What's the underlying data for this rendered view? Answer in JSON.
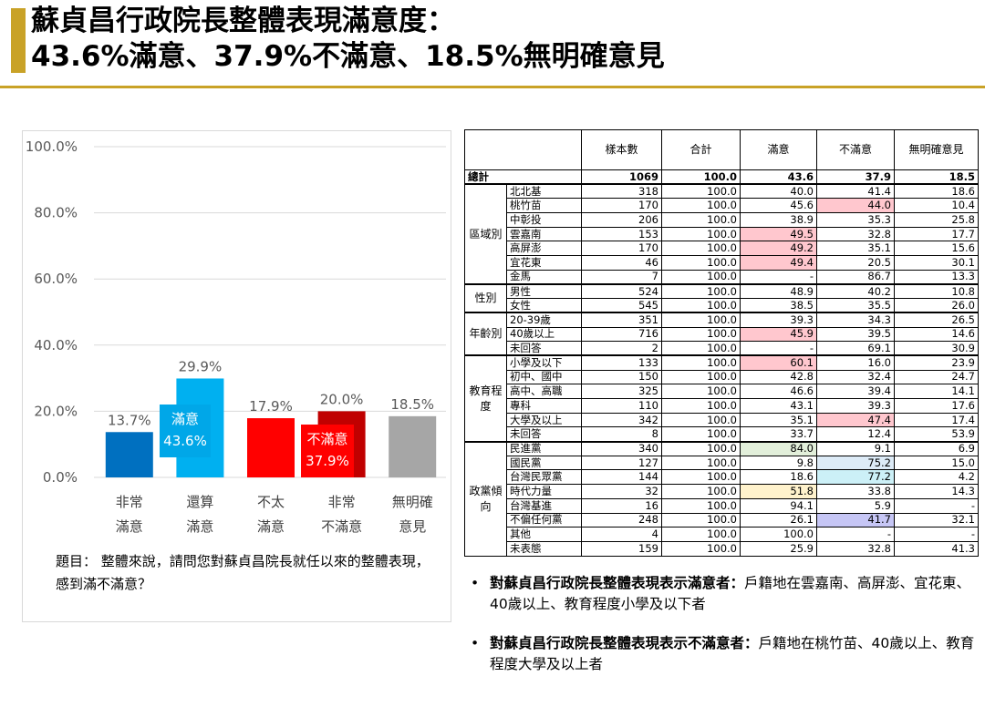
{
  "header": {
    "title_line1": "蘇貞昌行政院長整體表現滿意度：",
    "title_line2": "43.6%滿意、37.9%不滿意、18.5%無明確意見",
    "accent_color": "#c9a227"
  },
  "chart_data": {
    "type": "bar",
    "categories": [
      {
        "line1": "非常",
        "line2": "滿意"
      },
      {
        "line1": "還算",
        "line2": "滿意"
      },
      {
        "line1": "不太",
        "line2": "滿意"
      },
      {
        "line1": "非常",
        "line2": "不滿意"
      },
      {
        "line1": "無明確",
        "line2": "意見"
      }
    ],
    "values": [
      13.7,
      29.9,
      17.9,
      20.0,
      18.5
    ],
    "value_labels": [
      "13.7%",
      "29.9%",
      "17.9%",
      "20.0%",
      "18.5%"
    ],
    "colors": [
      "#0070c0",
      "#00b0f0",
      "#ff0000",
      "#c00000",
      "#a6a6a6"
    ],
    "yticks": [
      "0.0%",
      "20.0%",
      "40.0%",
      "60.0%",
      "80.0%",
      "100.0%"
    ],
    "ylim": [
      0,
      100
    ],
    "grid": true,
    "callouts": [
      {
        "label": "滿意",
        "value": "43.6%",
        "color": "#00a7e8"
      },
      {
        "label": "不滿意",
        "value": "37.9%",
        "color": "#ff0000"
      }
    ],
    "question": "題目：  整體來說，請問您對蘇貞昌院長就任以來的整體表現，感到滿不滿意？"
  },
  "table": {
    "headers": [
      "樣本數",
      "合計",
      "滿意",
      "不滿意",
      "無明確意見"
    ],
    "total": {
      "label": "總計",
      "values": [
        "1069",
        "100.0",
        "43.6",
        "37.9",
        "18.5"
      ]
    },
    "groups": [
      {
        "label": "區域別",
        "rows": [
          {
            "name": "北北基",
            "values": [
              "318",
              "100.0",
              "40.0",
              "41.4",
              "18.6"
            ],
            "hl": {}
          },
          {
            "name": "桃竹苗",
            "values": [
              "170",
              "100.0",
              "45.6",
              "44.0",
              "10.4"
            ],
            "hl": {
              "3": "pink"
            }
          },
          {
            "name": "中彰投",
            "values": [
              "206",
              "100.0",
              "38.9",
              "35.3",
              "25.8"
            ],
            "hl": {}
          },
          {
            "name": "雲嘉南",
            "values": [
              "153",
              "100.0",
              "49.5",
              "32.8",
              "17.7"
            ],
            "hl": {
              "2": "pink"
            }
          },
          {
            "name": "高屏澎",
            "values": [
              "170",
              "100.0",
              "49.2",
              "35.1",
              "15.6"
            ],
            "hl": {
              "2": "pink"
            }
          },
          {
            "name": "宜花東",
            "values": [
              "46",
              "100.0",
              "49.4",
              "20.5",
              "30.1"
            ],
            "hl": {
              "2": "pink"
            }
          },
          {
            "name": "金馬",
            "values": [
              "7",
              "100.0",
              "-",
              "86.7",
              "13.3"
            ],
            "hl": {}
          }
        ]
      },
      {
        "label": "性別",
        "rows": [
          {
            "name": "男性",
            "values": [
              "524",
              "100.0",
              "48.9",
              "40.2",
              "10.8"
            ],
            "hl": {}
          },
          {
            "name": "女性",
            "values": [
              "545",
              "100.0",
              "38.5",
              "35.5",
              "26.0"
            ],
            "hl": {}
          }
        ]
      },
      {
        "label": "年齡別",
        "rows": [
          {
            "name": "20-39歲",
            "values": [
              "351",
              "100.0",
              "39.3",
              "34.3",
              "26.5"
            ],
            "hl": {}
          },
          {
            "name": "40歲以上",
            "values": [
              "716",
              "100.0",
              "45.9",
              "39.5",
              "14.6"
            ],
            "hl": {
              "2": "pink"
            }
          },
          {
            "name": "未回答",
            "values": [
              "2",
              "100.0",
              "-",
              "69.1",
              "30.9"
            ],
            "hl": {}
          }
        ]
      },
      {
        "label": "教育程度",
        "rows": [
          {
            "name": "小學及以下",
            "values": [
              "133",
              "100.0",
              "60.1",
              "16.0",
              "23.9"
            ],
            "hl": {
              "2": "pink"
            }
          },
          {
            "name": "初中、國中",
            "values": [
              "150",
              "100.0",
              "42.8",
              "32.4",
              "24.7"
            ],
            "hl": {}
          },
          {
            "name": "高中、高職",
            "values": [
              "325",
              "100.0",
              "46.6",
              "39.4",
              "14.1"
            ],
            "hl": {}
          },
          {
            "name": "專科",
            "values": [
              "110",
              "100.0",
              "43.1",
              "39.3",
              "17.6"
            ],
            "hl": {}
          },
          {
            "name": "大學及以上",
            "values": [
              "342",
              "100.0",
              "35.1",
              "47.4",
              "17.4"
            ],
            "hl": {
              "3": "pink"
            }
          },
          {
            "name": "未回答",
            "values": [
              "8",
              "100.0",
              "33.7",
              "12.4",
              "53.9"
            ],
            "hl": {}
          }
        ]
      },
      {
        "label": "政黨傾向",
        "rows": [
          {
            "name": "民進黨",
            "values": [
              "340",
              "100.0",
              "84.0",
              "9.1",
              "6.9"
            ],
            "hl": {
              "2": "green"
            }
          },
          {
            "name": "國民黨",
            "values": [
              "127",
              "100.0",
              "9.8",
              "75.2",
              "15.0"
            ],
            "hl": {
              "3": "lightblue"
            }
          },
          {
            "name": "台灣民眾黨",
            "values": [
              "144",
              "100.0",
              "18.6",
              "77.2",
              "4.2"
            ],
            "hl": {
              "3": "teal"
            }
          },
          {
            "name": "時代力量",
            "values": [
              "32",
              "100.0",
              "51.8",
              "33.8",
              "14.3"
            ],
            "hl": {
              "2": "yellow"
            }
          },
          {
            "name": "台灣基進",
            "values": [
              "16",
              "100.0",
              "94.1",
              "5.9",
              "-"
            ],
            "hl": {}
          },
          {
            "name": "不偏任何黨",
            "values": [
              "248",
              "100.0",
              "26.1",
              "41.7",
              "32.1"
            ],
            "hl": {
              "3": "lavender"
            }
          },
          {
            "name": "其他",
            "values": [
              "4",
              "100.0",
              "100.0",
              "-",
              "-"
            ],
            "hl": {}
          },
          {
            "name": "未表態",
            "values": [
              "159",
              "100.0",
              "25.9",
              "32.8",
              "41.3"
            ],
            "hl": {}
          }
        ]
      }
    ]
  },
  "bullets": [
    {
      "bold": "對蘇貞昌行政院長整體表現表示滿意者：",
      "text": "戶籍地在雲嘉南、高屏澎、宜花東、40歲以上、教育程度小學及以下者"
    },
    {
      "bold": "對蘇貞昌行政院長整體表現表示不滿意者：",
      "text": "戶籍地在桃竹苗、40歲以上、教育程度大學及以上者"
    }
  ]
}
